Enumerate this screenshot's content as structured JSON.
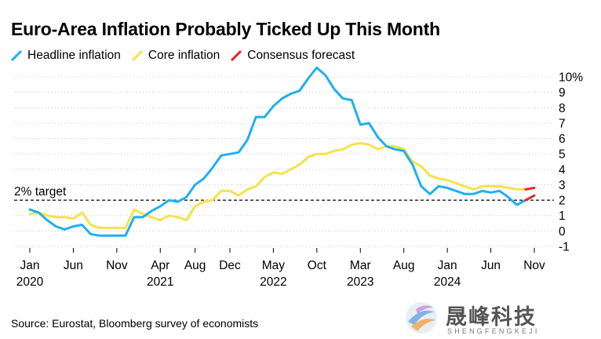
{
  "title": "Euro-Area Inflation Probably Ticked Up This Month",
  "source": "Source: Eurostat, Bloomberg survey of economists",
  "watermark": {
    "cn": "晟峰科技",
    "en": "SHENGFENGKEJI"
  },
  "colors": {
    "headline": "#1fb0ee",
    "core": "#f5e24a",
    "forecast": "#e8272c",
    "target": "#000000",
    "axis": "#000000"
  },
  "chart_data": {
    "type": "line",
    "title": "Euro-Area Inflation Probably Ticked Up This Month",
    "xlabel": "",
    "ylabel": "",
    "ylim": [
      -1,
      10
    ],
    "y_ticks": [
      {
        "value": 10,
        "label": "10%"
      },
      {
        "value": 9,
        "label": "9"
      },
      {
        "value": 8,
        "label": "8"
      },
      {
        "value": 7,
        "label": "7"
      },
      {
        "value": 6,
        "label": "6"
      },
      {
        "value": 5,
        "label": "5"
      },
      {
        "value": 4,
        "label": "4"
      },
      {
        "value": 3,
        "label": "3"
      },
      {
        "value": 2,
        "label": "2"
      },
      {
        "value": 1,
        "label": "1"
      },
      {
        "value": 0,
        "label": "0"
      },
      {
        "value": -1,
        "label": "-1"
      }
    ],
    "x_ticks": [
      {
        "index": 0,
        "label": "Jan",
        "year": "2020"
      },
      {
        "index": 5,
        "label": "Jun",
        "year": ""
      },
      {
        "index": 10,
        "label": "Nov",
        "year": ""
      },
      {
        "index": 15,
        "label": "Apr",
        "year": "2021"
      },
      {
        "index": 19,
        "label": "Aug",
        "year": ""
      },
      {
        "index": 23,
        "label": "Dec",
        "year": ""
      },
      {
        "index": 28,
        "label": "May",
        "year": "2022"
      },
      {
        "index": 33,
        "label": "Oct",
        "year": ""
      },
      {
        "index": 38,
        "label": "Mar",
        "year": "2023"
      },
      {
        "index": 43,
        "label": "Aug",
        "year": ""
      },
      {
        "index": 48,
        "label": "Jan",
        "year": "2024"
      },
      {
        "index": 53,
        "label": "Jun",
        "year": ""
      },
      {
        "index": 58,
        "label": "Nov",
        "year": ""
      }
    ],
    "x_range": [
      0,
      58
    ],
    "target": {
      "value": 2,
      "label": "2% target"
    },
    "series": [
      {
        "name": "Headline inflation",
        "values": [
          1.4,
          1.2,
          0.7,
          0.3,
          0.1,
          0.3,
          0.4,
          -0.2,
          -0.3,
          -0.3,
          -0.3,
          -0.3,
          0.9,
          0.9,
          1.3,
          1.6,
          2.0,
          1.9,
          2.2,
          3.0,
          3.4,
          4.1,
          4.9,
          5.0,
          5.1,
          5.9,
          7.4,
          7.4,
          8.1,
          8.6,
          8.9,
          9.1,
          9.9,
          10.6,
          10.1,
          9.2,
          8.6,
          8.5,
          6.9,
          7.0,
          6.1,
          5.5,
          5.3,
          5.2,
          4.3,
          2.9,
          2.4,
          2.9,
          2.8,
          2.6,
          2.4,
          2.4,
          2.6,
          2.5,
          2.6,
          2.2,
          1.7,
          2.0
        ],
        "start_index": 0
      },
      {
        "name": "Core inflation",
        "values": [
          1.1,
          1.2,
          1.0,
          0.9,
          0.9,
          0.8,
          1.2,
          0.4,
          0.2,
          0.2,
          0.2,
          0.2,
          1.4,
          1.1,
          0.9,
          0.7,
          1.0,
          0.9,
          0.7,
          1.6,
          1.9,
          2.0,
          2.6,
          2.6,
          2.3,
          2.7,
          2.9,
          3.5,
          3.8,
          3.7,
          4.0,
          4.3,
          4.8,
          5.0,
          5.0,
          5.2,
          5.3,
          5.6,
          5.7,
          5.6,
          5.3,
          5.5,
          5.5,
          5.3,
          4.5,
          4.2,
          3.6,
          3.4,
          3.3,
          3.1,
          2.9,
          2.7,
          2.9,
          2.9,
          2.9,
          2.8,
          2.7,
          2.7
        ],
        "start_index": 0
      },
      {
        "name": "Consensus forecast",
        "segments": [
          {
            "from_index": 57,
            "to_index": 58,
            "values": [
              2.7,
              2.8
            ]
          },
          {
            "from_index": 57,
            "to_index": 58,
            "values": [
              2.0,
              2.3
            ]
          }
        ]
      }
    ],
    "legend": [
      "Headline inflation",
      "Core inflation",
      "Consensus forecast"
    ],
    "legend_position": "top-left"
  }
}
